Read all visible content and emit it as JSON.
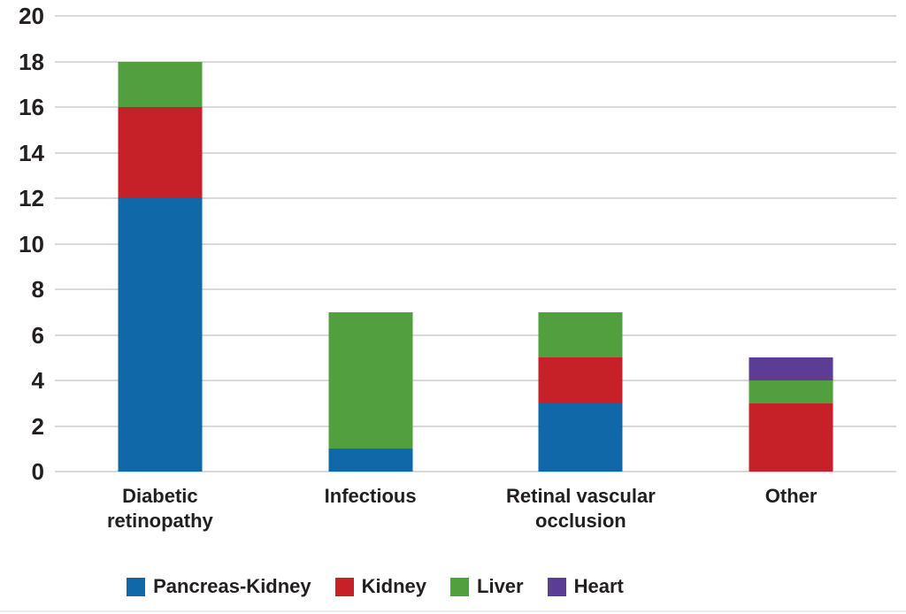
{
  "chart_data": {
    "type": "bar",
    "subtype": "stacked-vertical",
    "title": "",
    "xlabel": "",
    "ylabel": "",
    "categories": [
      "Diabetic\nretinopathy",
      "Infectious",
      "Retinal vascular\nocclusion",
      "Other"
    ],
    "series": [
      {
        "name": "Pancreas-Kidney",
        "color": "#1168a8",
        "values": [
          12,
          1,
          3,
          0
        ]
      },
      {
        "name": "Kidney",
        "color": "#c62128",
        "values": [
          4,
          0,
          2,
          3
        ]
      },
      {
        "name": "Liver",
        "color": "#529f3f",
        "values": [
          2,
          6,
          2,
          1
        ]
      },
      {
        "name": "Heart",
        "color": "#5c3d96",
        "values": [
          0,
          0,
          0,
          1
        ]
      }
    ],
    "totals": [
      18,
      7,
      7,
      5
    ],
    "ylim": [
      0,
      20
    ],
    "yticks": [
      0,
      2,
      4,
      6,
      8,
      10,
      12,
      14,
      16,
      18,
      20
    ],
    "grid": true,
    "gridline_color": "#d9d9d9",
    "text_color": "#231f20",
    "legend_position": "bottom",
    "legend_labels": [
      "Pancreas-Kidney",
      "Kidney",
      "Liver",
      "Heart"
    ]
  }
}
